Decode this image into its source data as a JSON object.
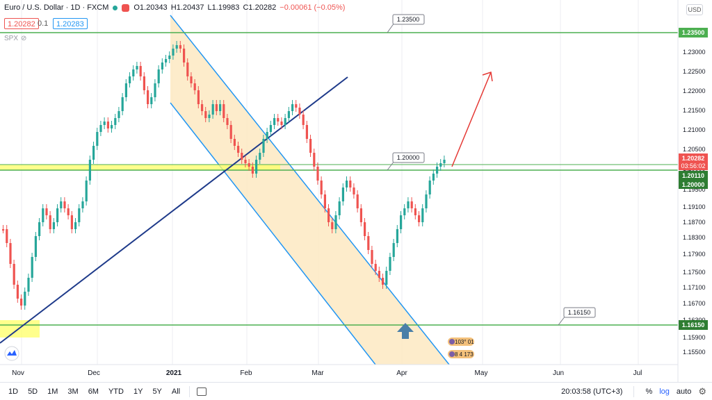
{
  "header": {
    "title": "Euro / U.S. Dollar · 1D · FXCM",
    "open": "O1.20343",
    "high": "H1.20437",
    "low": "L1.19983",
    "close": "C1.20282",
    "change": "−0.00061 (−0.05%)",
    "sell_price": "1.20282",
    "spread": "0.1",
    "buy_price": "1.20283",
    "spx_label": "SPX"
  },
  "currency_label": "USD",
  "price_axis": {
    "ticks": [
      "1.23500",
      "1.23000",
      "1.22500",
      "1.22000",
      "1.21500",
      "1.21000",
      "1.20500",
      "1.20000",
      "1.19500",
      "1.19100",
      "1.18700",
      "1.18300",
      "1.17900",
      "1.17500",
      "1.17100",
      "1.16700",
      "1.16300",
      "1.16150",
      "1.15900",
      "1.15500"
    ],
    "current_price": "1.20282",
    "countdown": "03:56:02",
    "level_labels": [
      "1.23500",
      "1.20110",
      "1.20000",
      "1.16150"
    ]
  },
  "time_axis": {
    "labels": [
      "Nov",
      "Dec",
      "2021",
      "Feb",
      "Mar",
      "Apr",
      "May",
      "Jun",
      "Jul"
    ]
  },
  "annotations": {
    "level_high": "1.23500",
    "level_mid": "1.20000",
    "level_low": "1.16150",
    "event_text_1": "103° 01",
    "event_text_2": "8 4 173"
  },
  "bottom_bar": {
    "ranges": [
      "1D",
      "5D",
      "1M",
      "3M",
      "6M",
      "YTD",
      "1Y",
      "5Y",
      "All"
    ],
    "time": "20:03:58 (UTC+3)",
    "percent": "%",
    "log": "log",
    "auto": "auto"
  },
  "colors": {
    "up": "#26a69a",
    "down": "#ef5350",
    "level_green": "#4caf50",
    "channel_blue": "#2196f3",
    "trend_blue": "#1e3a8a",
    "channel_fill": "#fde9c2",
    "zone_yellow": "#ffff66",
    "arrow_red": "#e53935",
    "up_arrow": "#4a7fa8"
  }
}
